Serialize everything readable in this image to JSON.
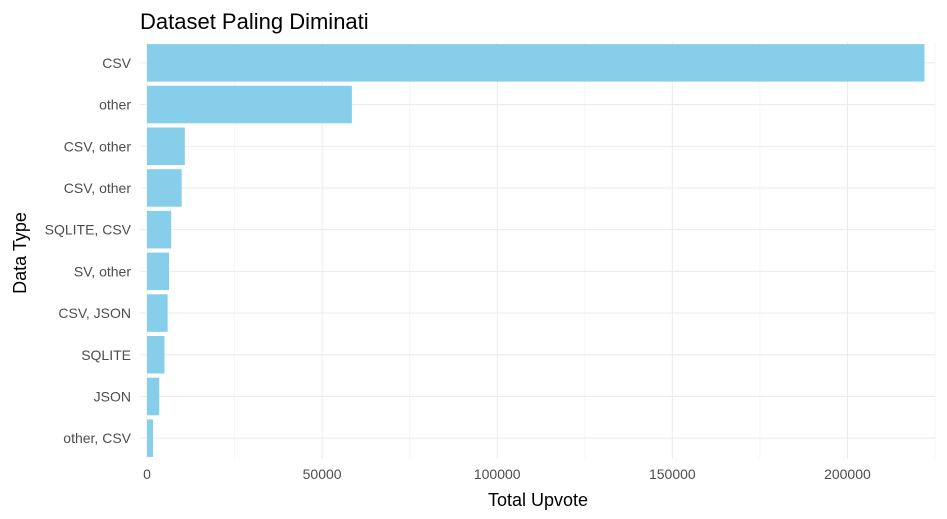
{
  "chart_data": {
    "type": "bar",
    "orientation": "horizontal",
    "title": "Dataset Paling Diminati",
    "xlabel": "Total Upvote",
    "ylabel": "Data Type",
    "categories": [
      "CSV",
      "other",
      "CSV, other",
      "CSV,  other",
      "SQLITE, CSV",
      "SV, other",
      "CSV, JSON",
      "SQLITE",
      "JSON",
      "other, CSV"
    ],
    "values": [
      222000,
      58500,
      10800,
      9900,
      6900,
      6300,
      5900,
      5000,
      3500,
      1700
    ],
    "xlim": [
      -2000,
      225000
    ],
    "xticks": [
      0,
      50000,
      100000,
      150000,
      200000
    ],
    "xtick_labels": [
      "0",
      "50000",
      "100000",
      "150000",
      "200000"
    ],
    "grid": true,
    "legend": "none",
    "bar_color": "#87CEEB"
  }
}
